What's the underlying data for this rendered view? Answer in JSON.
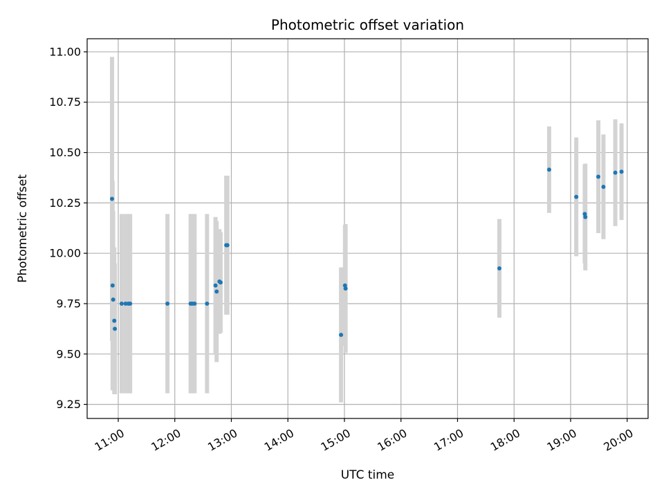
{
  "chart_data": {
    "type": "scatter",
    "title": "Photometric offset variation",
    "xlabel": "UTC time",
    "ylabel": "Photometric offset",
    "x_unit": "hours",
    "xlim": [
      10.45,
      20.37
    ],
    "ylim": [
      9.18,
      11.065
    ],
    "grid": true,
    "legend": "none",
    "x_ticks": [
      {
        "value": 11,
        "label": "11:00"
      },
      {
        "value": 12,
        "label": "12:00"
      },
      {
        "value": 13,
        "label": "13:00"
      },
      {
        "value": 14,
        "label": "14:00"
      },
      {
        "value": 15,
        "label": "15:00"
      },
      {
        "value": 16,
        "label": "16:00"
      },
      {
        "value": 17,
        "label": "17:00"
      },
      {
        "value": 18,
        "label": "18:00"
      },
      {
        "value": 19,
        "label": "19:00"
      },
      {
        "value": 20,
        "label": "20:00"
      }
    ],
    "y_ticks": [
      {
        "value": 9.25,
        "label": "9.25"
      },
      {
        "value": 9.5,
        "label": "9.50"
      },
      {
        "value": 9.75,
        "label": "9.75"
      },
      {
        "value": 10.0,
        "label": "10.00"
      },
      {
        "value": 10.25,
        "label": "10.25"
      },
      {
        "value": 10.5,
        "label": "10.50"
      },
      {
        "value": 10.75,
        "label": "10.75"
      },
      {
        "value": 11.0,
        "label": "11.00"
      }
    ],
    "colors": {
      "point": "#1f77b4",
      "errorbar": "#d3d3d3",
      "grid": "#b0b0b0",
      "axes": "#000000"
    },
    "points": [
      {
        "x": 10.89,
        "y": 10.27,
        "err": 0.705
      },
      {
        "x": 10.9,
        "y": 9.84,
        "err": 0.52
      },
      {
        "x": 10.91,
        "y": 9.77,
        "err": 0.44
      },
      {
        "x": 10.93,
        "y": 9.665,
        "err": 0.365
      },
      {
        "x": 10.94,
        "y": 9.625,
        "err": 0.325
      },
      {
        "x": 11.06,
        "y": 9.75,
        "err": 0.445
      },
      {
        "x": 11.13,
        "y": 9.75,
        "err": 0.445
      },
      {
        "x": 11.18,
        "y": 9.75,
        "err": 0.445
      },
      {
        "x": 11.21,
        "y": 9.75,
        "err": 0.445
      },
      {
        "x": 11.87,
        "y": 9.75,
        "err": 0.445
      },
      {
        "x": 12.28,
        "y": 9.75,
        "err": 0.445
      },
      {
        "x": 12.31,
        "y": 9.75,
        "err": 0.445
      },
      {
        "x": 12.35,
        "y": 9.75,
        "err": 0.445
      },
      {
        "x": 12.57,
        "y": 9.75,
        "err": 0.445
      },
      {
        "x": 12.72,
        "y": 9.84,
        "err": 0.34
      },
      {
        "x": 12.74,
        "y": 9.81,
        "err": 0.35
      },
      {
        "x": 12.79,
        "y": 9.86,
        "err": 0.26
      },
      {
        "x": 12.81,
        "y": 9.855,
        "err": 0.25
      },
      {
        "x": 12.91,
        "y": 10.04,
        "err": 0.345
      },
      {
        "x": 12.93,
        "y": 10.04,
        "err": 0.345
      },
      {
        "x": 14.94,
        "y": 9.595,
        "err": 0.335
      },
      {
        "x": 15.01,
        "y": 9.84,
        "err": 0.3
      },
      {
        "x": 15.02,
        "y": 9.825,
        "err": 0.32
      },
      {
        "x": 17.74,
        "y": 9.925,
        "err": 0.245
      },
      {
        "x": 18.62,
        "y": 10.415,
        "err": 0.215
      },
      {
        "x": 19.1,
        "y": 10.28,
        "err": 0.295
      },
      {
        "x": 19.25,
        "y": 10.195,
        "err": 0.245
      },
      {
        "x": 19.26,
        "y": 10.18,
        "err": 0.265
      },
      {
        "x": 19.49,
        "y": 10.38,
        "err": 0.28
      },
      {
        "x": 19.58,
        "y": 10.33,
        "err": 0.26
      },
      {
        "x": 19.79,
        "y": 10.4,
        "err": 0.265
      },
      {
        "x": 19.9,
        "y": 10.405,
        "err": 0.24
      }
    ]
  }
}
